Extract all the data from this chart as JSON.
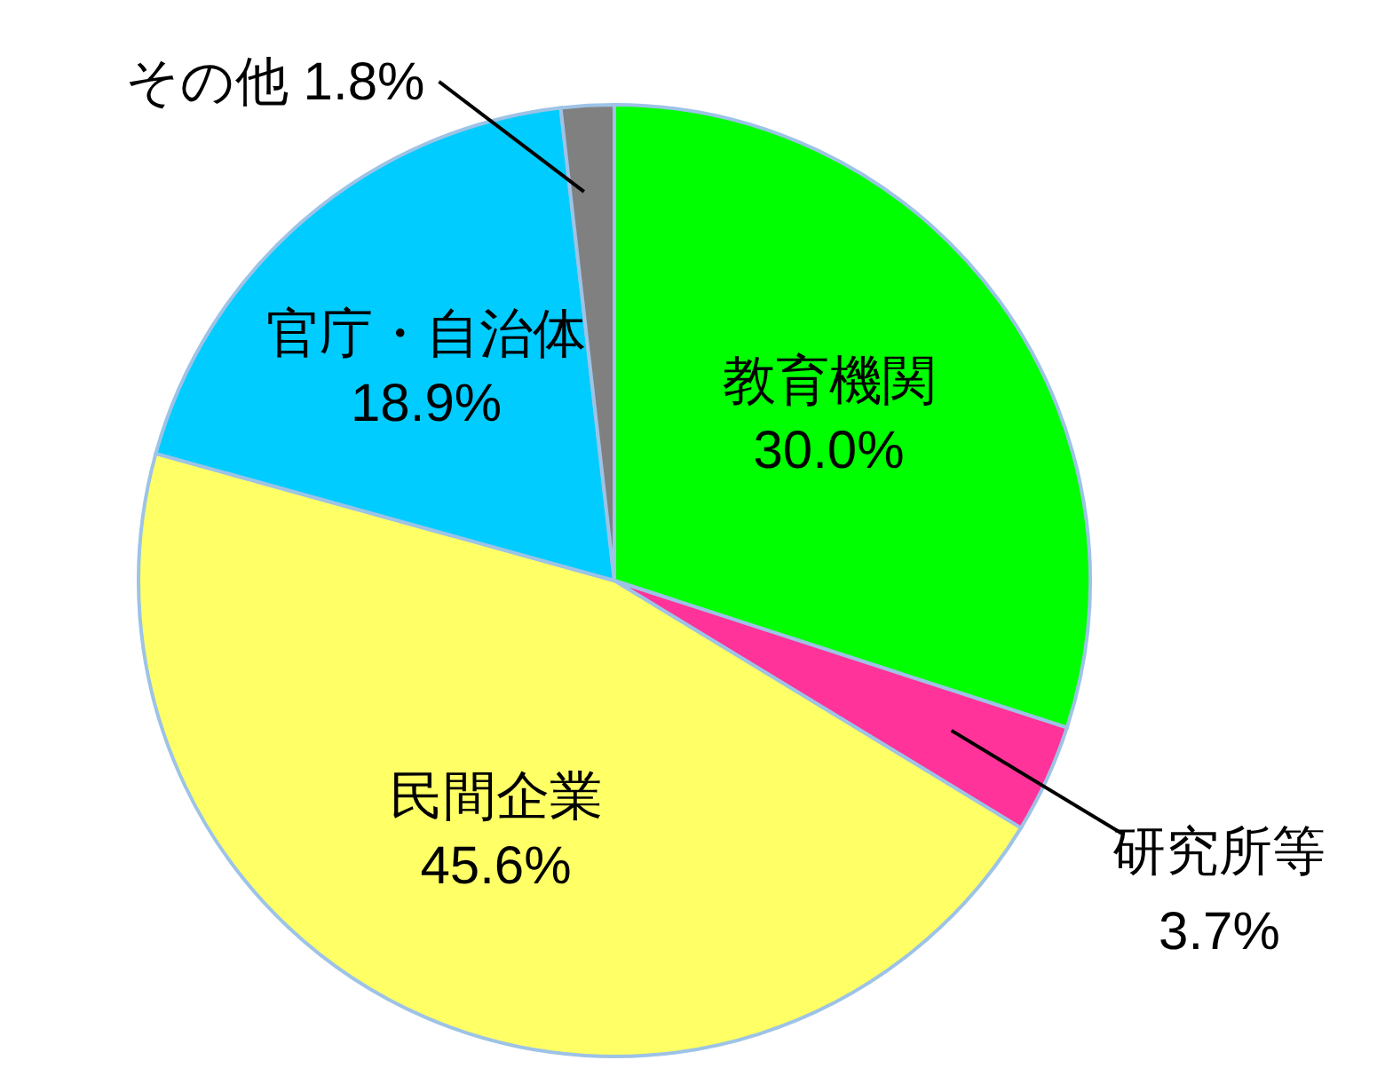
{
  "chart_data": {
    "type": "pie",
    "categories": [
      "教育機関",
      "研究所等",
      "民間企業",
      "官庁・自治体",
      "その他"
    ],
    "values": [
      30.0,
      3.7,
      45.6,
      18.9,
      1.8
    ],
    "colors": [
      "#00ff00",
      "#ff3399",
      "#ffff66",
      "#00ccff",
      "#808080"
    ],
    "value_labels": [
      "30.0%",
      "3.7%",
      "45.6%",
      "18.9%",
      "1.8%"
    ]
  }
}
